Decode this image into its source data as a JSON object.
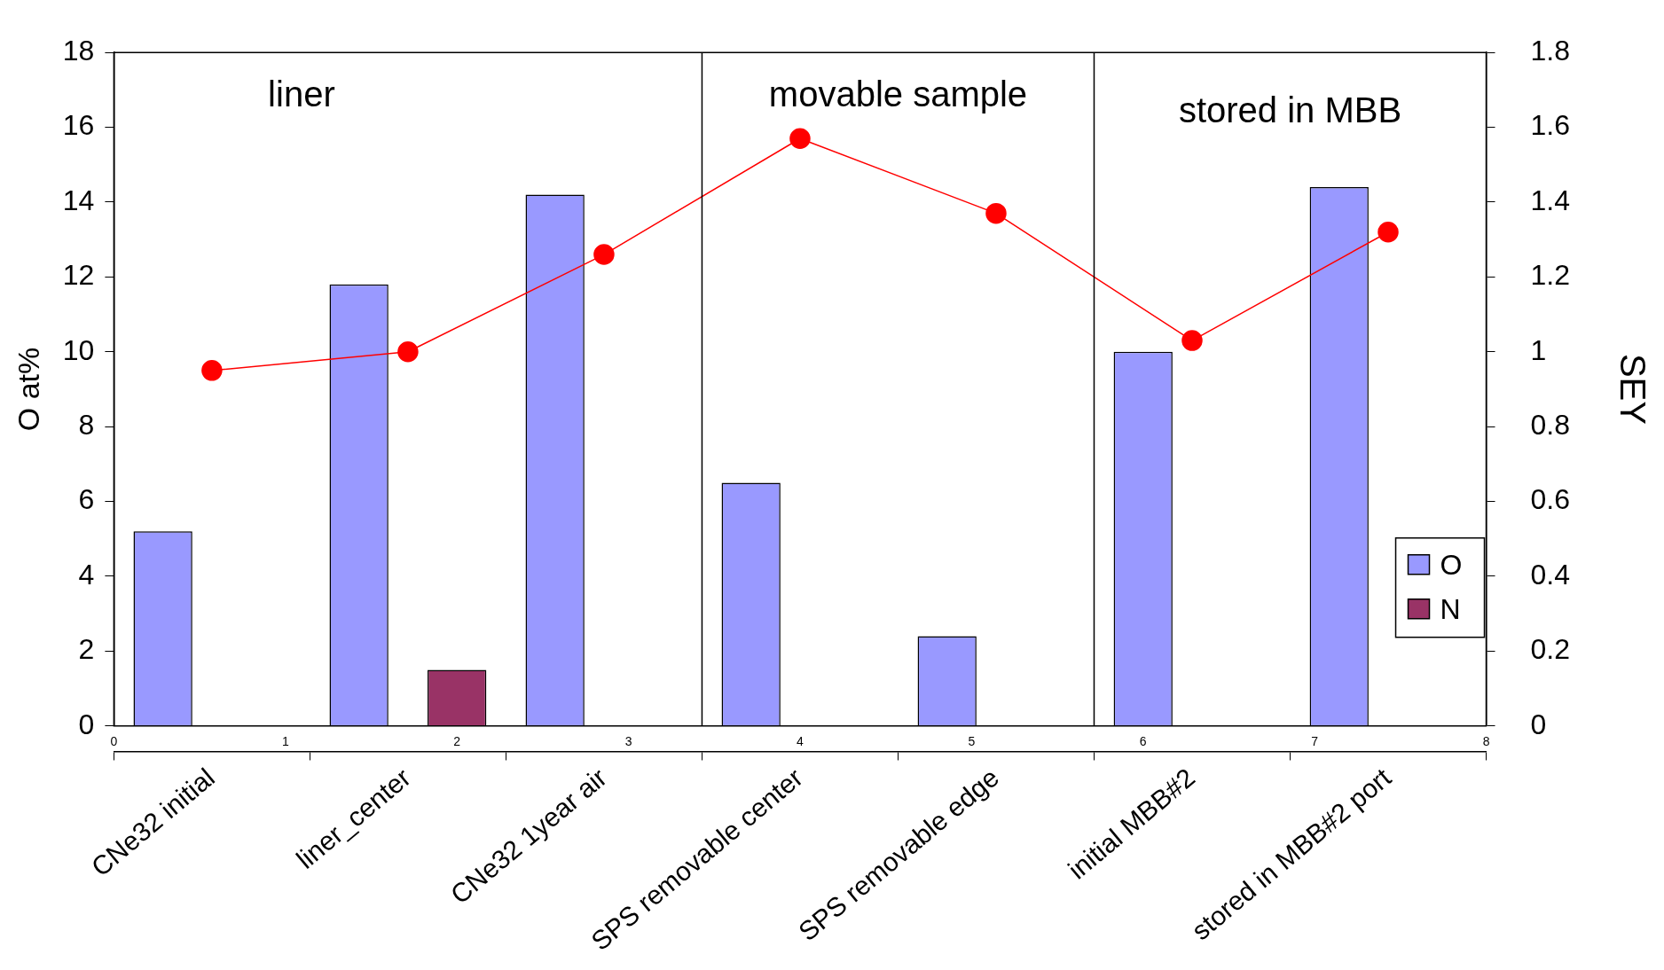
{
  "chart_data": {
    "type": "bar",
    "ylabel": "O at%",
    "y2label": "SEY",
    "categories": [
      "CNe32 initial",
      "liner_center",
      "CNe32 1year air",
      "SPS removable center",
      "SPS removable edge",
      "initial MBB#2",
      "stored in MBB#2 port"
    ],
    "series": [
      {
        "name": "O",
        "color": "#9999ff",
        "values": [
          5.2,
          11.8,
          14.2,
          6.5,
          2.4,
          10.0,
          14.4
        ]
      },
      {
        "name": "N",
        "color": "#993366",
        "values": [
          null,
          1.5,
          null,
          null,
          null,
          null,
          null
        ]
      },
      {
        "type": "line",
        "axis": "y2",
        "color": "#ff0000",
        "values": [
          0.95,
          1.0,
          1.26,
          1.57,
          1.37,
          1.03,
          1.32
        ],
        "marker": "circle",
        "line_style": "solid"
      }
    ],
    "ylim": [
      0,
      18
    ],
    "yticks": [
      0,
      2,
      4,
      6,
      8,
      10,
      12,
      14,
      16,
      18
    ],
    "y2lim": [
      0,
      1.8
    ],
    "y2ticks": [
      0,
      0.2,
      0.4,
      0.6,
      0.8,
      1,
      1.2,
      1.4,
      1.6,
      1.8
    ],
    "x2lim": [
      0,
      8
    ],
    "x2ticks": [
      0,
      1,
      2,
      3,
      4,
      5,
      6,
      7,
      8
    ],
    "annotations": [
      "liner",
      "movable sample",
      "stored in MBB"
    ],
    "grid": false,
    "legend": "bottom right"
  }
}
